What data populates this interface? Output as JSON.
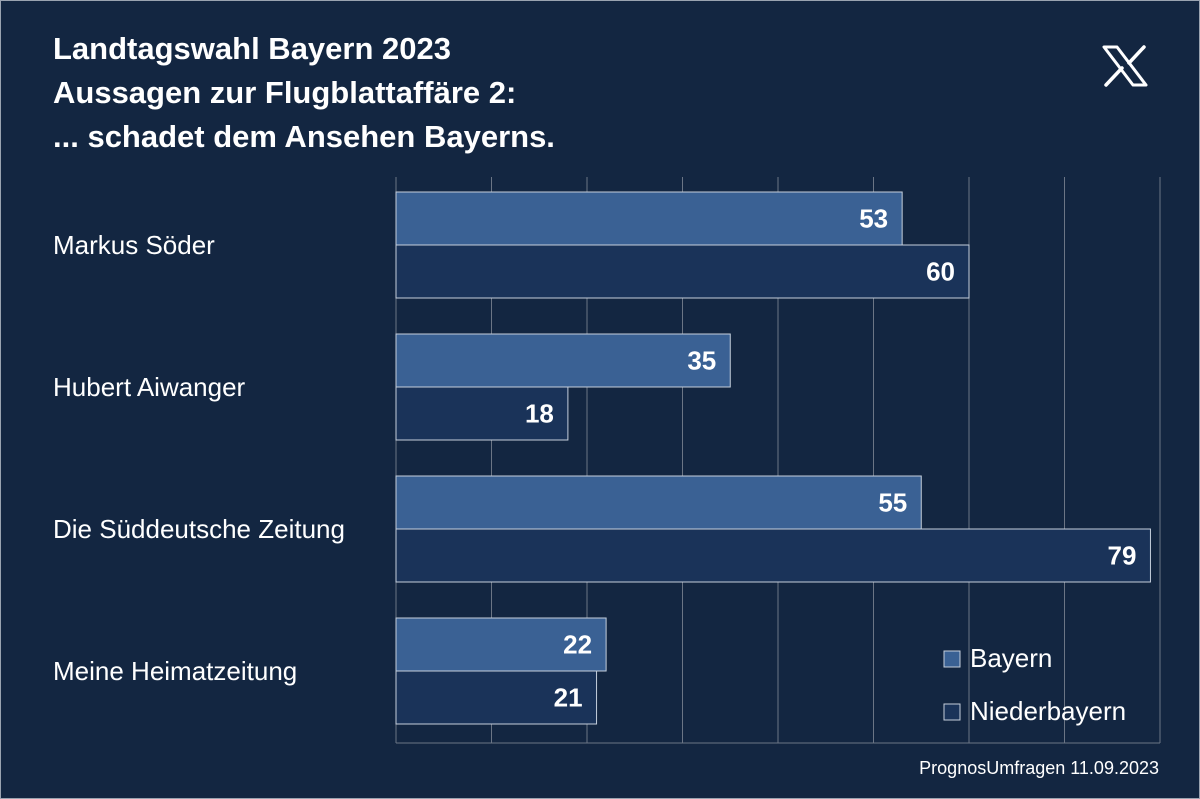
{
  "chart_data": {
    "type": "bar",
    "orientation": "horizontal",
    "title_lines": [
      "Landtagswahl Bayern 2023",
      "Aussagen zur Flugblattaffäre 2:",
      "... schadet dem Ansehen Bayerns."
    ],
    "categories": [
      "Markus Söder",
      "Hubert Aiwanger",
      "Die Süddeutsche Zeitung",
      "Meine Heimatzeitung"
    ],
    "series": [
      {
        "name": "Bayern",
        "values": [
          53,
          35,
          55,
          22
        ],
        "color": "#3a6194"
      },
      {
        "name": "Niederbayern",
        "values": [
          60,
          18,
          79,
          21
        ],
        "color": "#1a3359"
      }
    ],
    "xlim": [
      0,
      80
    ],
    "grid": true,
    "legend_position": "bottom-right"
  },
  "icon": "x-logo-icon",
  "colors": {
    "background": "#132641",
    "bar_border": "#c5cfdc",
    "grid": "#6b7585"
  },
  "source": "PrognosUmfragen 11.09.2023"
}
